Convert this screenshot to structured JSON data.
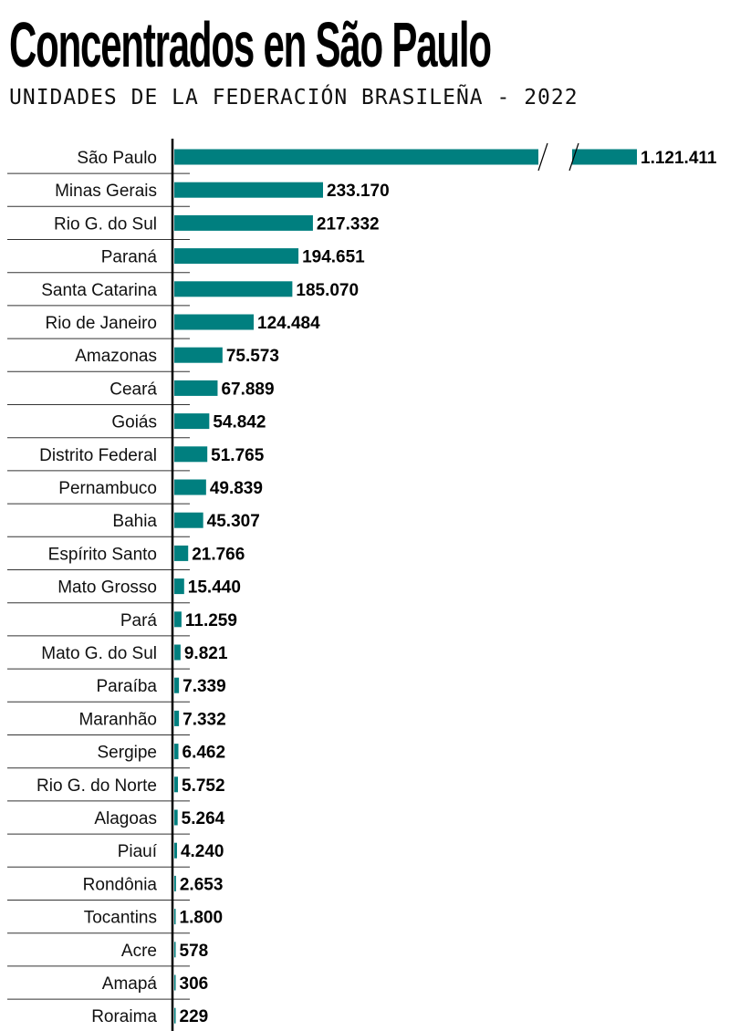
{
  "title": "Concentrados en São Paulo",
  "subtitle": "UNIDADES DE LA FEDERACIÓN BRASILEÑA - 2022",
  "colors": {
    "bar": "#007f7f",
    "axis": "#000000",
    "separator": "#333333"
  },
  "chart_data": {
    "type": "bar",
    "orientation": "horizontal",
    "title": "Concentrados en São Paulo",
    "subtitle": "UNIDADES DE LA FEDERACIÓN BRASILEÑA - 2022",
    "xlabel": "",
    "ylabel": "",
    "axis_break": {
      "category": "São Paulo"
    },
    "categories": [
      "São Paulo",
      "Minas Gerais",
      "Rio G. do Sul",
      "Paraná",
      "Santa Catarina",
      "Rio de Janeiro",
      "Amazonas",
      "Ceará",
      "Goiás",
      "Distrito Federal",
      "Pernambuco",
      "Bahia",
      "Espírito Santo",
      "Mato Grosso",
      "Pará",
      "Mato G. do Sul",
      "Paraíba",
      "Maranhão",
      "Sergipe",
      "Rio G. do Norte",
      "Alagoas",
      "Piauí",
      "Rondônia",
      "Tocantins",
      "Acre",
      "Amapá",
      "Roraima"
    ],
    "values": [
      1121411,
      233170,
      217332,
      194651,
      185070,
      124484,
      75573,
      67889,
      54842,
      51765,
      49839,
      45307,
      21766,
      15440,
      11259,
      9821,
      7339,
      7332,
      6462,
      5752,
      5264,
      4240,
      2653,
      1800,
      578,
      306,
      229
    ],
    "labels": [
      "1.121.411",
      "233.170",
      "217.332",
      "194.651",
      "185.070",
      "124.484",
      "75.573",
      "67.889",
      "54.842",
      "51.765",
      "49.839",
      "45.307",
      "21.766",
      "15.440",
      "11.259",
      "9.821",
      "7.339",
      "7.332",
      "6.462",
      "5.752",
      "5.264",
      "4.240",
      "2.653",
      "1.800",
      "578",
      "306",
      "229"
    ]
  }
}
